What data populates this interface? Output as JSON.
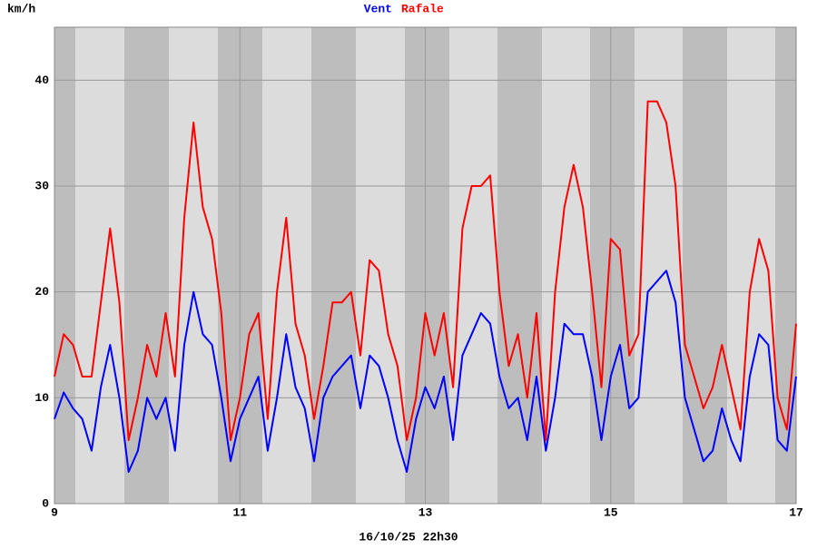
{
  "chart_data": {
    "type": "line",
    "y_label": "km/h",
    "footer": "16/10/25 22h30",
    "x": [
      9,
      9.1,
      9.2,
      9.3,
      9.4,
      9.5,
      9.6,
      9.7,
      9.8,
      9.9,
      10,
      10.1,
      10.2,
      10.3,
      10.4,
      10.5,
      10.6,
      10.7,
      10.8,
      10.9,
      11,
      11.1,
      11.2,
      11.3,
      11.4,
      11.5,
      11.6,
      11.7,
      11.8,
      11.9,
      12,
      12.1,
      12.2,
      12.3,
      12.4,
      12.5,
      12.6,
      12.7,
      12.8,
      12.9,
      13,
      13.1,
      13.2,
      13.3,
      13.4,
      13.5,
      13.6,
      13.7,
      13.8,
      13.9,
      14,
      14.1,
      14.2,
      14.3,
      14.4,
      14.5,
      14.6,
      14.7,
      14.8,
      14.9,
      15,
      15.1,
      15.2,
      15.3,
      15.4,
      15.5,
      15.6,
      15.7,
      15.8,
      15.9,
      16,
      16.1,
      16.2,
      16.3,
      16.4,
      16.5,
      16.6,
      16.7,
      16.8,
      16.9,
      17
    ],
    "series": [
      {
        "name": "Vent",
        "color": "#0000ff",
        "values": [
          8,
          10.5,
          9,
          8,
          5,
          11,
          15,
          10,
          3,
          5,
          10,
          8,
          10,
          5,
          15,
          20,
          16,
          15,
          10,
          4,
          8,
          10,
          12,
          5,
          10,
          16,
          11,
          9,
          4,
          10,
          12,
          13,
          14,
          9,
          14,
          13,
          10,
          6,
          3,
          8,
          11,
          9,
          12,
          6,
          14,
          16,
          18,
          17,
          12,
          9,
          10,
          6,
          12,
          5,
          10,
          17,
          16,
          16,
          12,
          6,
          12,
          15,
          9,
          10,
          20,
          21,
          22,
          19,
          10,
          7,
          4,
          5,
          9,
          6,
          4,
          12,
          16,
          15,
          6,
          5,
          12
        ]
      },
      {
        "name": "Rafale",
        "color": "#ff0000",
        "values": [
          12,
          16,
          15,
          12,
          12,
          19,
          26,
          19,
          6,
          10,
          15,
          12,
          18,
          12,
          27,
          36,
          28,
          25,
          18,
          6,
          10,
          16,
          18,
          8,
          20,
          27,
          17,
          14,
          8,
          13,
          19,
          19,
          20,
          14,
          23,
          22,
          16,
          13,
          6,
          10,
          18,
          14,
          18,
          11,
          26,
          30,
          30,
          31,
          20,
          13,
          16,
          10,
          18,
          6,
          20,
          28,
          32,
          28,
          20,
          11,
          25,
          24,
          14,
          16,
          38,
          38,
          36,
          30,
          15,
          12,
          9,
          11,
          15,
          11,
          7,
          20,
          25,
          22,
          10,
          7,
          17
        ]
      }
    ],
    "xlim": [
      9,
      17
    ],
    "xticks": [
      9,
      11,
      13,
      15,
      17
    ],
    "ylim": [
      0,
      45
    ],
    "yticks": [
      0,
      10,
      20,
      30,
      40
    ],
    "grid": true
  }
}
